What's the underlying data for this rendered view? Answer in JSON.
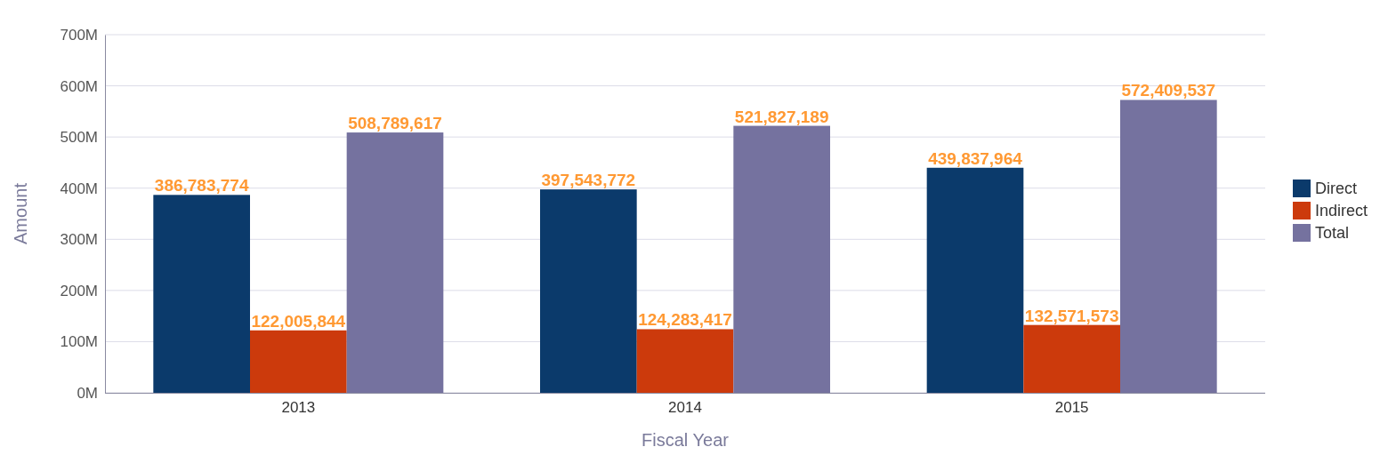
{
  "chart_data": {
    "type": "bar",
    "xlabel": "Fiscal Year",
    "ylabel": "Amount",
    "categories": [
      "2013",
      "2014",
      "2015"
    ],
    "series": [
      {
        "name": "Direct",
        "color": "#0b3a6b",
        "values": [
          386783774,
          397543772,
          439837964
        ],
        "value_labels": [
          "386,783,774",
          "397,543,772",
          "439,837,964"
        ]
      },
      {
        "name": "Indirect",
        "color": "#cc3a0c",
        "values": [
          122005844,
          124283417,
          132571573
        ],
        "value_labels": [
          "122,005,844",
          "124,283,417",
          "132,571,573"
        ]
      },
      {
        "name": "Total",
        "color": "#75729f",
        "values": [
          508789617,
          521827189,
          572409537
        ],
        "value_labels": [
          "508,789,617",
          "521,827,189",
          "572,409,537"
        ]
      }
    ],
    "ylim": [
      0,
      700000000
    ],
    "yticks": [
      {
        "value": 0,
        "label": "0M"
      },
      {
        "value": 100000000,
        "label": "100M"
      },
      {
        "value": 200000000,
        "label": "200M"
      },
      {
        "value": 300000000,
        "label": "300M"
      },
      {
        "value": 400000000,
        "label": "400M"
      },
      {
        "value": 500000000,
        "label": "500M"
      },
      {
        "value": 600000000,
        "label": "600M"
      },
      {
        "value": 700000000,
        "label": "700M"
      }
    ],
    "grid": "y",
    "legend": "right"
  }
}
